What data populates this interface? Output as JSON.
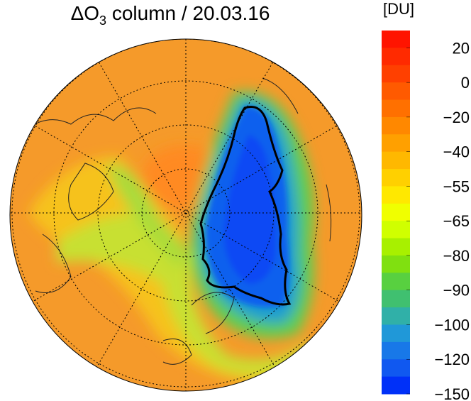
{
  "title": {
    "prefix": "ΔO",
    "subscript": "3",
    "suffix": " column / 20.03.16"
  },
  "colorbar": {
    "unit": "[DU]",
    "ticks": [
      {
        "value": 20,
        "label": "20"
      },
      {
        "value": 0,
        "label": "0"
      },
      {
        "value": -20,
        "label": "−20"
      },
      {
        "value": -40,
        "label": "−40"
      },
      {
        "value": -55,
        "label": "−55"
      },
      {
        "value": -65,
        "label": "−65"
      },
      {
        "value": -80,
        "label": "−80"
      },
      {
        "value": -90,
        "label": "−90"
      },
      {
        "value": -100,
        "label": "−100"
      },
      {
        "value": -120,
        "label": "−120"
      },
      {
        "value": -150,
        "label": "−150"
      }
    ],
    "colors": [
      "#ff1400",
      "#ff2a00",
      "#ff4000",
      "#ff5a00",
      "#ff7000",
      "#ff8800",
      "#ffa000",
      "#ffb800",
      "#ffd000",
      "#ffe800",
      "#f0ff00",
      "#d0ff00",
      "#a8f000",
      "#80e010",
      "#58d040",
      "#40c070",
      "#30b0a8",
      "#2098d8",
      "#1878e8",
      "#1058f0",
      "#0030f8"
    ]
  }
}
